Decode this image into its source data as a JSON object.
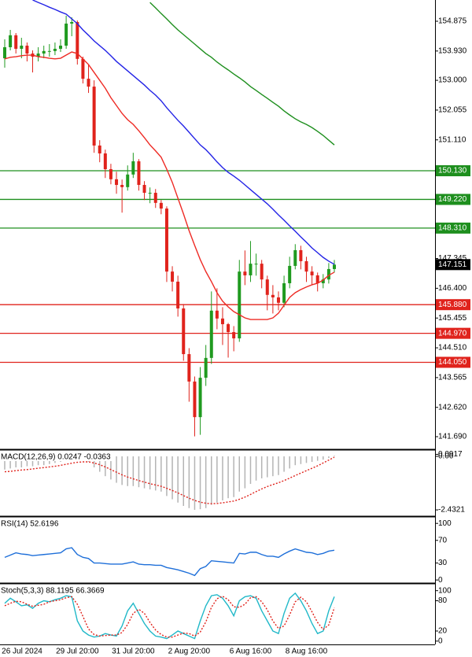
{
  "chart_data": [
    {
      "type": "candlestick",
      "categories": [
        null,
        null,
        "26 Jul 2024",
        null,
        null,
        null,
        null,
        null,
        null,
        null,
        null,
        null,
        null,
        "29 Jul 20:00",
        null,
        null,
        null,
        null,
        null,
        null,
        null,
        null,
        null,
        "31 Jul 20:00",
        null,
        null,
        null,
        null,
        null,
        null,
        null,
        null,
        null,
        "2 Aug 20:00",
        null,
        null,
        null,
        null,
        null,
        null,
        null,
        null,
        null,
        null,
        "6 Aug 16:00",
        null,
        null,
        null,
        null,
        null,
        null,
        null,
        null,
        null,
        "8 Aug 16:00",
        null,
        null,
        null,
        null,
        null
      ],
      "open": [
        153.7,
        154.05,
        154.43,
        154.0,
        154.1,
        153.85,
        153.75,
        153.85,
        153.93,
        153.93,
        154.0,
        154.1,
        154.8,
        154.85,
        153.68,
        153.05,
        152.8,
        150.93,
        150.68,
        150.18,
        149.86,
        149.68,
        149.61,
        150.01,
        150.43,
        149.68,
        149.43,
        149.43,
        149.11,
        148.93,
        146.93,
        146.61,
        145.76,
        144.31,
        143.44,
        142.31,
        143.56,
        144.19,
        145.69,
        145.44,
        145.26,
        145.01,
        144.81,
        146.93,
        146.81,
        147.18,
        147.18,
        146.68,
        146.19,
        146.11,
        145.94,
        146.56,
        147.11,
        147.61,
        147.26,
        146.93,
        146.81,
        146.56,
        146.68,
        147.01
      ],
      "high": [
        154.3,
        154.6,
        154.5,
        154.35,
        154.2,
        153.95,
        154.05,
        154.1,
        154.15,
        154.2,
        154.3,
        155.05,
        155.0,
        154.9,
        153.75,
        153.5,
        153.0,
        151.1,
        150.8,
        150.35,
        150.1,
        149.85,
        150.3,
        150.7,
        150.5,
        149.8,
        149.6,
        149.55,
        149.2,
        149.0,
        147.1,
        146.8,
        145.9,
        144.5,
        143.6,
        143.9,
        144.6,
        146.3,
        146.4,
        145.8,
        145.3,
        145.2,
        147.3,
        147.6,
        147.9,
        147.5,
        147.3,
        146.8,
        146.5,
        146.3,
        146.8,
        147.4,
        147.8,
        147.75,
        147.4,
        147.1,
        146.9,
        146.85,
        147.2,
        147.3
      ],
      "low": [
        153.4,
        153.95,
        153.85,
        153.7,
        153.6,
        153.25,
        153.6,
        153.7,
        153.75,
        153.8,
        153.9,
        154.0,
        154.4,
        153.5,
        152.9,
        152.6,
        150.7,
        150.4,
        149.9,
        149.7,
        149.4,
        148.8,
        149.5,
        149.9,
        149.5,
        149.2,
        149.1,
        148.95,
        148.75,
        146.6,
        146.3,
        145.5,
        144.1,
        142.8,
        141.7,
        141.75,
        143.3,
        144.0,
        145.1,
        144.6,
        144.2,
        144.4,
        144.7,
        146.5,
        146.6,
        146.8,
        146.4,
        145.7,
        145.6,
        145.7,
        145.8,
        146.4,
        147.0,
        147.0,
        146.6,
        146.5,
        146.3,
        146.4,
        146.55,
        146.9
      ],
      "close": [
        154.05,
        154.43,
        154.0,
        154.1,
        153.85,
        153.75,
        153.85,
        153.93,
        153.93,
        154.0,
        154.1,
        154.8,
        154.85,
        153.68,
        153.05,
        152.8,
        150.93,
        150.68,
        150.18,
        149.86,
        149.68,
        149.61,
        150.01,
        150.43,
        149.68,
        149.43,
        149.43,
        149.11,
        148.93,
        146.93,
        146.61,
        145.76,
        144.31,
        143.44,
        142.31,
        143.56,
        144.19,
        145.69,
        145.44,
        145.26,
        145.01,
        144.81,
        146.93,
        146.81,
        147.18,
        147.18,
        146.68,
        146.19,
        146.11,
        145.94,
        146.56,
        147.11,
        147.61,
        147.26,
        146.93,
        146.81,
        146.56,
        146.68,
        147.01,
        147.15
      ],
      "up_color": "#1f9a1f",
      "down_color": "#e0231c",
      "series": [
        {
          "color": "#2323e6",
          "values": [
            null,
            null,
            null,
            null,
            null,
            155.55,
            155.47,
            155.4,
            155.32,
            155.25,
            155.17,
            155.1,
            154.95,
            154.8,
            154.6,
            154.43,
            154.25,
            154.1,
            153.95,
            153.78,
            153.6,
            153.45,
            153.3,
            153.15,
            153.0,
            152.85,
            152.68,
            152.53,
            152.35,
            152.13,
            151.93,
            151.73,
            151.55,
            151.35,
            151.15,
            150.95,
            150.8,
            150.61,
            150.41,
            150.23,
            150.08,
            149.96,
            149.83,
            149.68,
            149.53,
            149.38,
            149.23,
            149.08,
            148.91,
            148.73,
            148.56,
            148.38,
            148.21,
            148.03,
            147.86,
            147.68,
            147.53,
            147.38,
            147.26,
            147.16
          ]
        },
        {
          "color": "#ee2a24",
          "values": [
            153.68,
            153.73,
            153.75,
            153.78,
            153.8,
            153.8,
            153.75,
            153.73,
            153.7,
            153.68,
            153.7,
            153.8,
            153.9,
            153.85,
            153.68,
            153.5,
            153.25,
            153.0,
            152.75,
            152.45,
            152.2,
            151.95,
            151.75,
            151.6,
            151.4,
            151.18,
            150.95,
            150.76,
            150.56,
            150.18,
            149.76,
            149.26,
            148.76,
            148.23,
            147.76,
            147.31,
            146.93,
            146.61,
            146.26,
            145.99,
            145.81,
            145.66,
            145.56,
            145.46,
            145.41,
            145.41,
            145.41,
            145.41,
            145.46,
            145.61,
            145.86,
            146.11,
            146.26,
            146.36,
            146.44,
            146.51,
            146.56,
            146.66,
            146.81,
            146.91
          ]
        },
        {
          "color": "#1e8f1e",
          "values": [
            null,
            null,
            null,
            null,
            null,
            null,
            null,
            null,
            null,
            null,
            null,
            null,
            null,
            null,
            null,
            null,
            null,
            null,
            null,
            null,
            null,
            null,
            null,
            null,
            null,
            null,
            155.47,
            155.3,
            155.12,
            154.95,
            154.77,
            154.6,
            154.45,
            154.3,
            154.15,
            154.0,
            153.85,
            153.73,
            153.58,
            153.45,
            153.33,
            153.2,
            153.08,
            152.95,
            152.8,
            152.68,
            152.55,
            152.43,
            152.3,
            152.18,
            152.03,
            151.9,
            151.78,
            151.68,
            151.6,
            151.5,
            151.38,
            151.25,
            151.1,
            150.95
          ]
        }
      ],
      "levels": [
        {
          "value": 150.13,
          "label": "150.130",
          "color": "#1e8f1e"
        },
        {
          "value": 149.22,
          "label": "149.220",
          "color": "#1e8f1e"
        },
        {
          "value": 148.31,
          "label": "148.310",
          "color": "#1e8f1e"
        },
        {
          "value": 145.88,
          "label": "145.880",
          "color": "#e0231c"
        },
        {
          "value": 144.97,
          "label": "144.970",
          "color": "#e0231c"
        },
        {
          "value": 144.05,
          "label": "144.050",
          "color": "#e0231c"
        }
      ],
      "current_price": 147.151,
      "ylim": [
        141.315,
        155.549
      ],
      "yticks": [
        154.875,
        {
          "value": 153.93,
          "label": "153.930"
        },
        {
          "value": 153,
          "label": "153.000"
        },
        152.055,
        {
          "value": 151.11,
          "label": "151.110"
        },
        147.345,
        {
          "value": 146.4,
          "label": "146.400"
        },
        145.455,
        {
          "value": 144.51,
          "label": "144.510"
        },
        143.565,
        {
          "value": 142.62,
          "label": "142.620"
        },
        {
          "value": 141.69,
          "label": "141.690"
        }
      ]
    },
    {
      "type": "bar",
      "title": "MACD(12,26,9) 0.0247 -0.0363",
      "color": "#b4b4b4",
      "values": [
        -0.6,
        -0.55,
        -0.5,
        -0.5,
        -0.45,
        -0.45,
        -0.4,
        -0.4,
        -0.35,
        -0.3,
        -0.25,
        -0.15,
        -0.1,
        -0.1,
        -0.15,
        -0.25,
        -0.5,
        -0.7,
        -0.9,
        -1.05,
        -1.2,
        -1.3,
        -1.35,
        -1.35,
        -1.4,
        -1.45,
        -1.5,
        -1.55,
        -1.6,
        -1.8,
        -1.95,
        -2.1,
        -2.25,
        -2.35,
        -2.43,
        -2.4,
        -2.35,
        -2.2,
        -2.1,
        -2.0,
        -1.9,
        -1.85,
        -1.6,
        -1.45,
        -1.25,
        -1.1,
        -1.0,
        -0.95,
        -0.9,
        -0.85,
        -0.7,
        -0.55,
        -0.4,
        -0.35,
        -0.3,
        -0.25,
        -0.2,
        -0.15,
        -0.08,
        0.0247
      ],
      "series": [
        {
          "color": "#e0231c",
          "style": "dotted",
          "values": [
            -0.7,
            -0.68,
            -0.65,
            -0.62,
            -0.6,
            -0.57,
            -0.54,
            -0.51,
            -0.48,
            -0.45,
            -0.41,
            -0.36,
            -0.31,
            -0.27,
            -0.25,
            -0.25,
            -0.3,
            -0.38,
            -0.48,
            -0.6,
            -0.72,
            -0.84,
            -0.94,
            -1.02,
            -1.1,
            -1.17,
            -1.24,
            -1.3,
            -1.36,
            -1.45,
            -1.55,
            -1.66,
            -1.78,
            -1.9,
            -2.0,
            -2.08,
            -2.13,
            -2.15,
            -2.14,
            -2.11,
            -2.07,
            -2.03,
            -1.95,
            -1.85,
            -1.73,
            -1.6,
            -1.48,
            -1.37,
            -1.28,
            -1.2,
            -1.1,
            -0.99,
            -0.87,
            -0.76,
            -0.65,
            -0.54,
            -0.43,
            -0.3,
            -0.17,
            -0.0363
          ]
        }
      ],
      "ylim": [
        -2.68,
        0.25
      ],
      "yticks": [
        {
          "value": 0.0917,
          "label": "0.0917"
        },
        {
          "value": 0,
          "label": "0.00"
        },
        -2.4321
      ]
    },
    {
      "type": "line",
      "title": "RSI(14) 52.6196",
      "series": [
        {
          "color": "#1e6fd9",
          "values": [
            40,
            44,
            48,
            46,
            45,
            43,
            44,
            45,
            46,
            47,
            48,
            55,
            57,
            45,
            40,
            38,
            30,
            30,
            29,
            28,
            28,
            28,
            30,
            32,
            28,
            27,
            27,
            26,
            26,
            22,
            20,
            18,
            15,
            12,
            8,
            20,
            24,
            34,
            33,
            32,
            31,
            30,
            47,
            46,
            49,
            49,
            45,
            42,
            42,
            40,
            46,
            51,
            55,
            52,
            49,
            48,
            45,
            47,
            51,
            52.6196
          ]
        }
      ],
      "ylim": [
        -4,
        110
      ],
      "yticks": [
        100,
        70,
        30,
        0
      ]
    },
    {
      "type": "line",
      "title": "Stoch(5,3,3) 88.1195 66.3669",
      "series": [
        {
          "color": "#20b8c8",
          "values": [
            75,
            85,
            78,
            70,
            72,
            65,
            75,
            80,
            78,
            82,
            85,
            90,
            88,
            40,
            20,
            12,
            8,
            10,
            15,
            12,
            10,
            30,
            60,
            75,
            55,
            35,
            20,
            10,
            8,
            5,
            12,
            20,
            15,
            10,
            5,
            40,
            70,
            90,
            92,
            85,
            70,
            50,
            80,
            88,
            90,
            85,
            60,
            40,
            20,
            15,
            55,
            85,
            95,
            80,
            60,
            35,
            15,
            20,
            60,
            88.1195
          ]
        },
        {
          "color": "#e0231c",
          "style": "dotted",
          "values": [
            70,
            75,
            79,
            78,
            73,
            69,
            71,
            73,
            78,
            80,
            82,
            86,
            88,
            73,
            49,
            24,
            13,
            10,
            11,
            12,
            12,
            17,
            33,
            55,
            63,
            55,
            37,
            22,
            13,
            8,
            8,
            12,
            16,
            15,
            10,
            18,
            38,
            67,
            84,
            89,
            82,
            68,
            67,
            73,
            86,
            88,
            78,
            62,
            40,
            25,
            30,
            52,
            78,
            87,
            78,
            58,
            37,
            23,
            32,
            66.3669
          ]
        }
      ],
      "ylim": [
        -5,
        112
      ],
      "yticks": [
        100,
        80,
        20,
        0
      ]
    }
  ]
}
